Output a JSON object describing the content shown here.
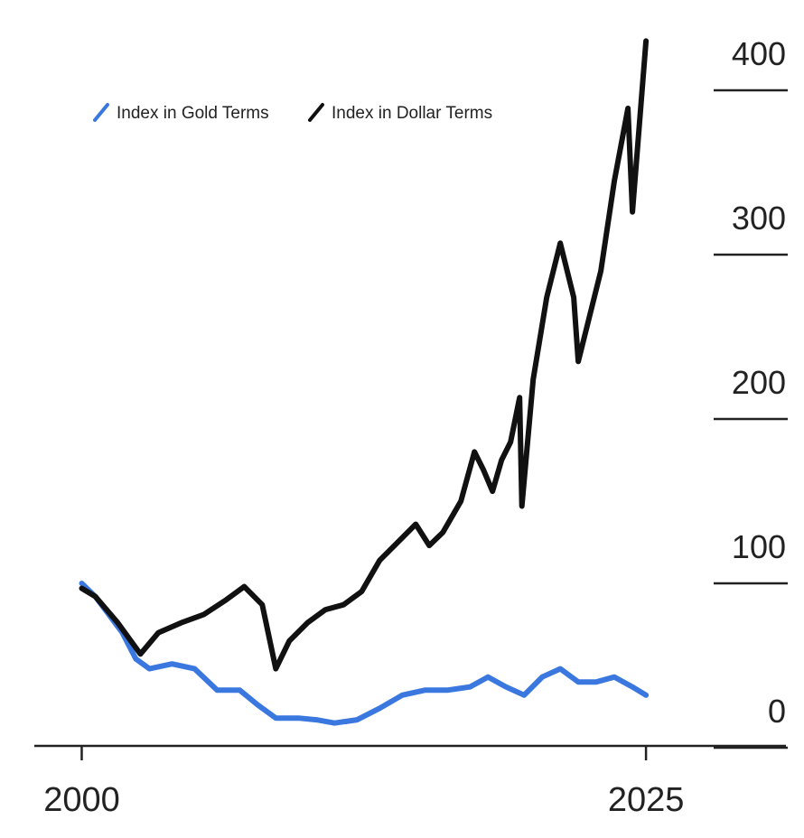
{
  "chart_data": {
    "type": "line",
    "series": [
      {
        "name": "Index in Gold Terms",
        "color": "#3a78e0",
        "x": [
          2000,
          2000.6,
          2001.2,
          2001.8,
          2002.4,
          2003,
          2004,
          2005,
          2006,
          2007,
          2007.8,
          2008.6,
          2009.6,
          2010.4,
          2011.2,
          2012.2,
          2013.2,
          2014.2,
          2015.2,
          2016.2,
          2017.2,
          2018,
          2018.8,
          2019.6,
          2020.4,
          2021.2,
          2022,
          2022.8,
          2023.6,
          2024.4,
          2025
        ],
        "values": [
          100,
          92,
          81,
          70,
          54,
          48,
          51,
          48,
          35,
          35,
          26,
          18,
          18,
          17,
          15,
          17,
          24,
          32,
          35,
          35,
          37,
          43,
          37,
          32,
          43,
          48,
          40,
          40,
          43,
          37,
          32
        ]
      },
      {
        "name": "Index in Dollar Terms",
        "color": "#111111",
        "x": [
          2000,
          2000.6,
          2001.6,
          2002.6,
          2003.4,
          2004.4,
          2005.4,
          2006.4,
          2007.2,
          2008,
          2008.6,
          2009.2,
          2010,
          2010.8,
          2011.6,
          2012.4,
          2013.2,
          2014,
          2014.8,
          2015.4,
          2016,
          2016.8,
          2017.4,
          2017.8,
          2018.2,
          2018.6,
          2019,
          2019.4,
          2019.5,
          2020,
          2020.6,
          2021.2,
          2021.8,
          2022,
          2022.4,
          2023,
          2023.6,
          2024.2,
          2024.4,
          2025
        ],
        "values": [
          97,
          92,
          76,
          57,
          70,
          76,
          81,
          90,
          98,
          87,
          48,
          65,
          76,
          84,
          87,
          95,
          114,
          125,
          136,
          123,
          131,
          150,
          180,
          169,
          156,
          175,
          186,
          213,
          147,
          224,
          274,
          307,
          274,
          235,
          257,
          290,
          345,
          389,
          326,
          430
        ]
      }
    ],
    "xlim": [
      1997.9,
      2031.2
    ],
    "xticks": [
      2000,
      2025
    ],
    "ylim": [
      0,
      440
    ],
    "yticks": [
      0,
      100,
      200,
      300,
      400
    ]
  }
}
